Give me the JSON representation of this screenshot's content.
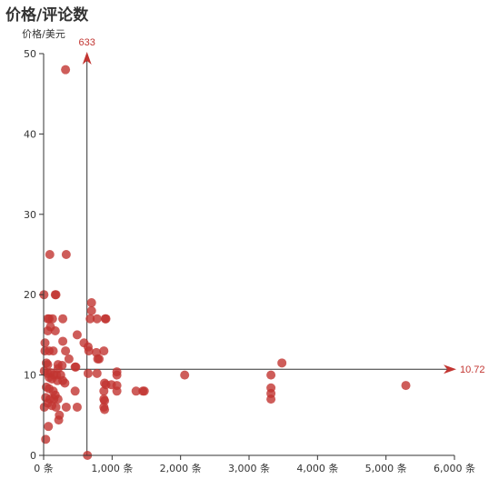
{
  "chart_data": {
    "type": "scatter",
    "title": "价格/评论数",
    "xlabel": "",
    "ylabel": "价格/美元",
    "xlim": [
      0,
      6000
    ],
    "ylim": [
      0,
      50
    ],
    "x_ticks": [
      "0 条",
      "1,000 条",
      "2,000 条",
      "3,000 条",
      "4,000 条",
      "5,000 条",
      "6,000 条"
    ],
    "y_ticks": [
      "0",
      "10",
      "20",
      "30",
      "40",
      "50"
    ],
    "grid": false,
    "legend": "none",
    "color": "#c23531",
    "mark_lines": {
      "x_value": 633,
      "x_label": "633",
      "y_value": 10.72,
      "y_label": "10.72"
    },
    "points": [
      [
        320,
        48
      ],
      [
        90,
        25
      ],
      [
        330,
        25
      ],
      [
        5,
        20
      ],
      [
        170,
        20
      ],
      [
        180,
        20
      ],
      [
        700,
        19
      ],
      [
        700,
        18
      ],
      [
        680,
        17
      ],
      [
        780,
        17
      ],
      [
        900,
        17
      ],
      [
        910,
        17
      ],
      [
        60,
        17
      ],
      [
        80,
        17
      ],
      [
        130,
        17
      ],
      [
        280,
        17
      ],
      [
        100,
        16
      ],
      [
        170,
        15.5
      ],
      [
        60,
        15.5
      ],
      [
        490,
        15
      ],
      [
        20,
        14
      ],
      [
        280,
        14.2
      ],
      [
        590,
        14
      ],
      [
        650,
        13.5
      ],
      [
        20,
        13
      ],
      [
        80,
        13
      ],
      [
        140,
        13
      ],
      [
        320,
        13
      ],
      [
        660,
        13
      ],
      [
        770,
        12.8
      ],
      [
        880,
        13
      ],
      [
        790,
        12
      ],
      [
        810,
        12
      ],
      [
        370,
        12
      ],
      [
        40,
        11.5
      ],
      [
        60,
        11.3
      ],
      [
        210,
        11.3
      ],
      [
        270,
        11.2
      ],
      [
        460,
        11
      ],
      [
        470,
        11
      ],
      [
        210,
        10.8
      ],
      [
        10,
        10.5
      ],
      [
        60,
        10.2
      ],
      [
        100,
        10.3
      ],
      [
        150,
        10
      ],
      [
        190,
        10
      ],
      [
        250,
        10
      ],
      [
        650,
        10.2
      ],
      [
        780,
        10.2
      ],
      [
        1070,
        10.4
      ],
      [
        1070,
        10
      ],
      [
        2060,
        10
      ],
      [
        3320,
        10
      ],
      [
        3480,
        11.5
      ],
      [
        5290,
        8.7
      ],
      [
        80,
        9.7
      ],
      [
        120,
        9.5
      ],
      [
        200,
        9.3
      ],
      [
        280,
        9.3
      ],
      [
        310,
        9
      ],
      [
        890,
        9
      ],
      [
        910,
        8.8
      ],
      [
        990,
        8.8
      ],
      [
        1070,
        8.7
      ],
      [
        3320,
        8.4
      ],
      [
        40,
        8.5
      ],
      [
        80,
        8.3
      ],
      [
        140,
        8
      ],
      [
        170,
        7.5
      ],
      [
        460,
        8
      ],
      [
        880,
        8
      ],
      [
        1350,
        8
      ],
      [
        1450,
        8
      ],
      [
        1470,
        8
      ],
      [
        1070,
        8
      ],
      [
        3320,
        7.7
      ],
      [
        30,
        7.2
      ],
      [
        90,
        7
      ],
      [
        150,
        7
      ],
      [
        210,
        7
      ],
      [
        880,
        7
      ],
      [
        890,
        6.8
      ],
      [
        3320,
        7
      ],
      [
        10,
        6
      ],
      [
        60,
        6.5
      ],
      [
        120,
        6.2
      ],
      [
        180,
        6
      ],
      [
        330,
        6
      ],
      [
        490,
        6
      ],
      [
        880,
        6
      ],
      [
        890,
        5.7
      ],
      [
        230,
        5
      ],
      [
        220,
        4.4
      ],
      [
        70,
        3.6
      ],
      [
        30,
        2
      ],
      [
        640,
        0
      ]
    ]
  }
}
